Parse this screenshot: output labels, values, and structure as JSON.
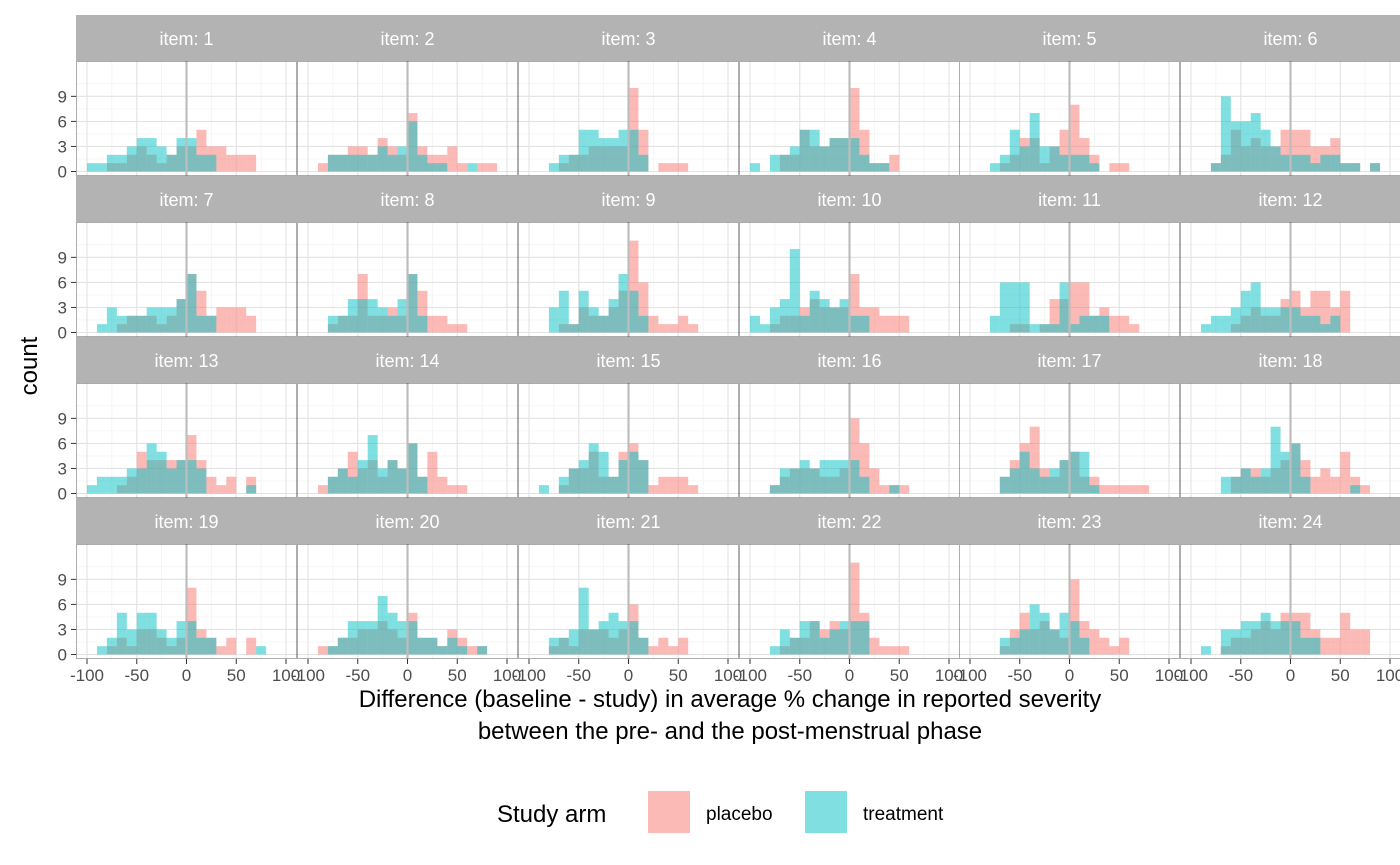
{
  "chart_data": {
    "type": "bar",
    "subtype": "faceted-histogram",
    "facet_prefix": "item: ",
    "xlabel": [
      "Difference (baseline - study) in average % change in reported severity",
      "between the pre- and the post-menstrual phase"
    ],
    "ylabel": "count",
    "xlim": [
      -100,
      100
    ],
    "ylim": [
      0,
      11
    ],
    "x_ticks": [
      -100,
      -50,
      0,
      50,
      100
    ],
    "x_tick_labels": [
      "-100",
      "-50",
      "0",
      "50",
      "100"
    ],
    "y_ticks": [
      0,
      3,
      6,
      9
    ],
    "y_tick_labels": [
      "0",
      "3",
      "6",
      "9"
    ],
    "bin_width": 10,
    "reference_line_x": 0,
    "grid": true,
    "legend": {
      "title": "Study arm",
      "position": "bottom",
      "entries": [
        {
          "name": "placebo",
          "color": "#F8766D"
        },
        {
          "name": "treatment",
          "color": "#00BFC4"
        }
      ]
    },
    "bin_centers": [
      -95,
      -85,
      -75,
      -65,
      -55,
      -45,
      -35,
      -25,
      -15,
      -5,
      5,
      15,
      25,
      35,
      45,
      55,
      65,
      75,
      85,
      95
    ],
    "panels": [
      {
        "item": "1",
        "placebo": [
          0,
          0,
          1,
          1,
          2,
          3,
          2,
          1,
          2,
          3,
          3,
          5,
          3,
          3,
          2,
          2,
          2,
          0,
          0,
          0
        ],
        "treatment": [
          1,
          1,
          2,
          2,
          3,
          4,
          4,
          3,
          2,
          4,
          4,
          2,
          2,
          0,
          0,
          0,
          0,
          0,
          0,
          0
        ]
      },
      {
        "item": "2",
        "placebo": [
          0,
          1,
          2,
          2,
          3,
          3,
          2,
          4,
          3,
          2,
          7,
          3,
          2,
          2,
          3,
          1,
          0,
          1,
          1,
          0
        ],
        "treatment": [
          0,
          0,
          2,
          2,
          2,
          2,
          2,
          3,
          2,
          3,
          6,
          2,
          1,
          1,
          0,
          0,
          1,
          0,
          0,
          0
        ]
      },
      {
        "item": "3",
        "placebo": [
          0,
          0,
          0,
          1,
          2,
          2,
          3,
          3,
          3,
          3,
          10,
          5,
          0,
          1,
          1,
          1,
          0,
          0,
          0,
          0
        ],
        "treatment": [
          0,
          0,
          1,
          2,
          2,
          5,
          5,
          4,
          4,
          5,
          5,
          2,
          0,
          0,
          0,
          0,
          0,
          0,
          0,
          0
        ]
      },
      {
        "item": "4",
        "placebo": [
          0,
          0,
          0,
          2,
          2,
          5,
          3,
          3,
          4,
          4,
          10,
          5,
          1,
          1,
          2,
          0,
          0,
          0,
          0,
          0
        ],
        "treatment": [
          1,
          0,
          2,
          2,
          3,
          5,
          5,
          3,
          4,
          4,
          4,
          2,
          1,
          1,
          0,
          0,
          0,
          0,
          0,
          0
        ]
      },
      {
        "item": "5",
        "placebo": [
          0,
          0,
          0,
          1,
          2,
          4,
          4,
          1,
          3,
          5,
          8,
          4,
          2,
          0,
          1,
          1,
          0,
          0,
          0,
          0
        ],
        "treatment": [
          0,
          0,
          1,
          2,
          5,
          3,
          7,
          3,
          3,
          2,
          2,
          2,
          1,
          0,
          0,
          0,
          0,
          0,
          0,
          0
        ]
      },
      {
        "item": "6",
        "placebo": [
          0,
          0,
          1,
          2,
          5,
          3,
          4,
          3,
          3,
          5,
          5,
          5,
          3,
          3,
          4,
          1,
          1,
          0,
          1,
          0
        ],
        "treatment": [
          0,
          0,
          1,
          9,
          6,
          6,
          7,
          5,
          3,
          2,
          2,
          2,
          1,
          2,
          2,
          1,
          1,
          0,
          1,
          0
        ]
      },
      {
        "item": "7",
        "placebo": [
          0,
          0,
          0,
          1,
          2,
          2,
          2,
          1,
          2,
          4,
          7,
          5,
          2,
          3,
          3,
          3,
          2,
          0,
          0,
          0
        ],
        "treatment": [
          0,
          1,
          3,
          2,
          2,
          2,
          3,
          3,
          3,
          4,
          7,
          2,
          2,
          0,
          0,
          0,
          0,
          0,
          0,
          0
        ]
      },
      {
        "item": "8",
        "placebo": [
          0,
          0,
          1,
          2,
          2,
          7,
          2,
          2,
          3,
          2,
          7,
          5,
          2,
          2,
          1,
          1,
          0,
          0,
          0,
          0
        ],
        "treatment": [
          0,
          0,
          2,
          2,
          4,
          4,
          4,
          3,
          2,
          4,
          7,
          2,
          0,
          0,
          0,
          0,
          0,
          0,
          0,
          0
        ]
      },
      {
        "item": "9",
        "placebo": [
          0,
          0,
          0,
          1,
          1,
          3,
          2,
          2,
          3,
          5,
          11,
          6,
          2,
          1,
          1,
          2,
          1,
          0,
          0,
          0
        ],
        "treatment": [
          0,
          0,
          3,
          5,
          1,
          5,
          3,
          2,
          4,
          7,
          5,
          2,
          0,
          0,
          0,
          0,
          0,
          0,
          0,
          0
        ]
      },
      {
        "item": "10",
        "placebo": [
          0,
          0,
          1,
          2,
          2,
          3,
          4,
          3,
          3,
          3,
          7,
          3,
          3,
          2,
          2,
          2,
          0,
          0,
          0,
          0
        ],
        "treatment": [
          2,
          1,
          3,
          4,
          10,
          2,
          5,
          4,
          3,
          4,
          2,
          2,
          0,
          0,
          0,
          0,
          0,
          0,
          0,
          0
        ]
      },
      {
        "item": "11",
        "placebo": [
          0,
          0,
          0,
          0,
          1,
          1,
          0,
          1,
          4,
          4,
          6,
          6,
          2,
          3,
          2,
          2,
          1,
          0,
          0,
          0
        ],
        "treatment": [
          0,
          0,
          2,
          6,
          6,
          6,
          1,
          1,
          1,
          6,
          1,
          2,
          2,
          2,
          0,
          0,
          0,
          0,
          0,
          0
        ]
      },
      {
        "item": "12",
        "placebo": [
          0,
          0,
          0,
          0,
          1,
          2,
          3,
          2,
          2,
          4,
          5,
          3,
          5,
          5,
          3,
          5,
          0,
          0,
          0,
          0
        ],
        "treatment": [
          0,
          1,
          2,
          2,
          3,
          5,
          6,
          3,
          3,
          3,
          3,
          2,
          2,
          1,
          2,
          0,
          0,
          0,
          0,
          0
        ]
      },
      {
        "item": "13",
        "placebo": [
          0,
          0,
          0,
          1,
          2,
          5,
          4,
          4,
          4,
          4,
          7,
          4,
          2,
          1,
          2,
          0,
          2,
          0,
          0,
          0
        ],
        "treatment": [
          1,
          2,
          2,
          2,
          3,
          3,
          6,
          5,
          3,
          4,
          4,
          3,
          0,
          0,
          0,
          0,
          1,
          0,
          0,
          0
        ]
      },
      {
        "item": "14",
        "placebo": [
          0,
          1,
          2,
          3,
          5,
          3,
          4,
          2,
          4,
          3,
          6,
          2,
          5,
          2,
          1,
          1,
          0,
          0,
          0,
          0
        ],
        "treatment": [
          0,
          0,
          2,
          3,
          2,
          4,
          7,
          3,
          4,
          3,
          6,
          2,
          0,
          0,
          0,
          0,
          0,
          0,
          0,
          0
        ]
      },
      {
        "item": "15",
        "placebo": [
          0,
          0,
          0,
          1,
          3,
          3,
          5,
          2,
          2,
          5,
          6,
          4,
          1,
          2,
          2,
          2,
          1,
          0,
          0,
          0
        ],
        "treatment": [
          0,
          1,
          0,
          2,
          3,
          4,
          6,
          5,
          2,
          4,
          5,
          4,
          0,
          0,
          0,
          0,
          0,
          0,
          0,
          0
        ]
      },
      {
        "item": "16",
        "placebo": [
          0,
          0,
          1,
          2,
          3,
          3,
          3,
          2,
          2,
          3,
          9,
          6,
          3,
          1,
          1,
          1,
          0,
          0,
          0,
          0
        ],
        "treatment": [
          0,
          0,
          1,
          3,
          3,
          4,
          3,
          4,
          4,
          4,
          4,
          2,
          0,
          0,
          1,
          0,
          0,
          0,
          0,
          0
        ]
      },
      {
        "item": "17",
        "placebo": [
          0,
          0,
          0,
          2,
          4,
          6,
          8,
          3,
          2,
          4,
          5,
          2,
          2,
          1,
          1,
          1,
          1,
          1,
          0,
          0
        ],
        "treatment": [
          0,
          0,
          0,
          2,
          3,
          5,
          3,
          2,
          3,
          4,
          5,
          5,
          1,
          0,
          0,
          0,
          0,
          0,
          0,
          0
        ]
      },
      {
        "item": "18",
        "placebo": [
          0,
          0,
          0,
          0,
          2,
          3,
          3,
          2,
          3,
          4,
          6,
          4,
          2,
          3,
          2,
          5,
          2,
          1,
          0,
          0
        ],
        "treatment": [
          0,
          0,
          0,
          2,
          2,
          3,
          2,
          3,
          8,
          5,
          6,
          2,
          0,
          0,
          0,
          0,
          1,
          0,
          0,
          0
        ]
      },
      {
        "item": "19",
        "placebo": [
          0,
          0,
          1,
          2,
          1,
          3,
          3,
          2,
          1,
          2,
          8,
          3,
          2,
          1,
          2,
          0,
          2,
          0,
          0,
          0
        ],
        "treatment": [
          0,
          1,
          2,
          5,
          3,
          5,
          5,
          3,
          2,
          4,
          4,
          2,
          2,
          0,
          0,
          0,
          0,
          1,
          0,
          0
        ]
      },
      {
        "item": "20",
        "placebo": [
          0,
          1,
          1,
          2,
          2,
          3,
          3,
          4,
          3,
          2,
          5,
          2,
          2,
          1,
          3,
          2,
          1,
          1,
          0,
          0
        ],
        "treatment": [
          0,
          0,
          1,
          2,
          4,
          4,
          4,
          7,
          5,
          4,
          4,
          2,
          2,
          1,
          2,
          1,
          0,
          1,
          0,
          0
        ]
      },
      {
        "item": "21",
        "placebo": [
          0,
          0,
          1,
          2,
          1,
          3,
          3,
          3,
          2,
          3,
          6,
          2,
          1,
          2,
          1,
          2,
          0,
          0,
          0,
          0
        ],
        "treatment": [
          0,
          0,
          2,
          2,
          3,
          8,
          3,
          4,
          5,
          4,
          4,
          2,
          0,
          0,
          0,
          0,
          0,
          0,
          0,
          0
        ]
      },
      {
        "item": "22",
        "placebo": [
          0,
          0,
          0,
          1,
          2,
          2,
          4,
          3,
          4,
          3,
          11,
          5,
          2,
          1,
          1,
          1,
          0,
          0,
          0,
          0
        ],
        "treatment": [
          0,
          0,
          1,
          3,
          2,
          4,
          4,
          2,
          3,
          4,
          4,
          4,
          0,
          0,
          0,
          0,
          0,
          0,
          0,
          0
        ]
      },
      {
        "item": "23",
        "placebo": [
          0,
          0,
          0,
          1,
          3,
          5,
          3,
          4,
          3,
          2,
          9,
          4,
          3,
          2,
          1,
          2,
          0,
          0,
          0,
          0
        ],
        "treatment": [
          0,
          0,
          0,
          2,
          2,
          3,
          6,
          5,
          3,
          5,
          4,
          2,
          0,
          0,
          0,
          0,
          0,
          0,
          0,
          0
        ]
      },
      {
        "item": "24",
        "placebo": [
          0,
          0,
          0,
          1,
          2,
          2,
          3,
          4,
          3,
          5,
          5,
          5,
          3,
          2,
          2,
          5,
          3,
          3,
          0,
          0
        ],
        "treatment": [
          0,
          1,
          0,
          3,
          3,
          4,
          4,
          5,
          4,
          4,
          4,
          2,
          2,
          0,
          0,
          0,
          0,
          0,
          0,
          0
        ]
      }
    ]
  }
}
